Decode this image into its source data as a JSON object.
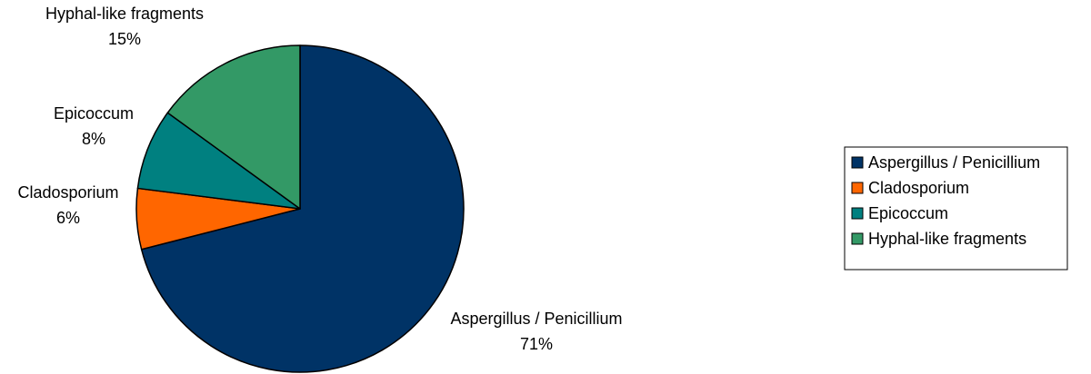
{
  "chart_data": {
    "type": "pie",
    "title": "",
    "start_angle": "12 o'clock",
    "direction": "clockwise",
    "slices": [
      {
        "label": "Aspergillus / Penicillium",
        "value": 71,
        "display": "71%",
        "color": "#003366"
      },
      {
        "label": "Cladosporium",
        "value": 6,
        "display": "6%",
        "color": "#FF6600"
      },
      {
        "label": "Epicoccum",
        "value": 8,
        "display": "8%",
        "color": "#008080"
      },
      {
        "label": "Hyphal-like fragments",
        "value": 15,
        "display": "15%",
        "color": "#339966"
      }
    ],
    "legend": {
      "position": "right",
      "entries": [
        "Aspergillus / Penicillium",
        "Cladosporium",
        "Epicoccum",
        "Hyphal-like fragments"
      ]
    }
  }
}
